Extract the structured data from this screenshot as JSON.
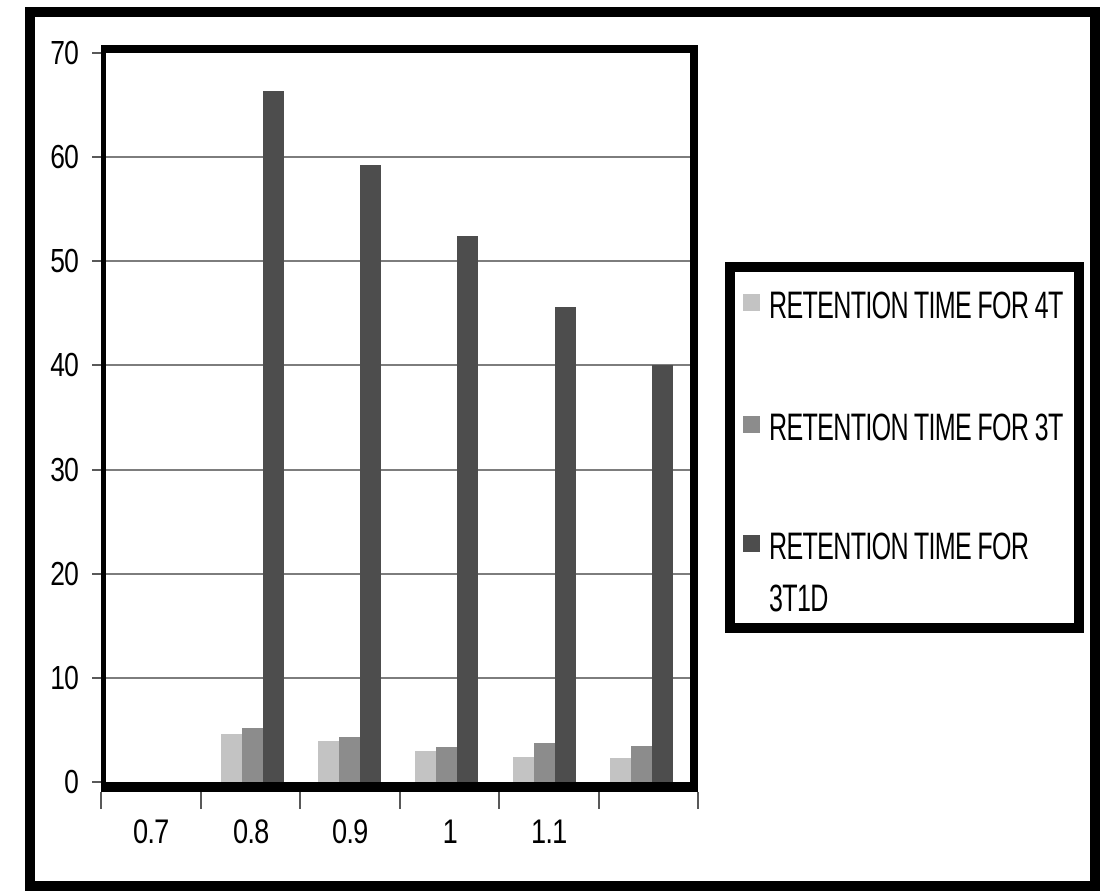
{
  "chart_data": {
    "type": "bar",
    "title": "",
    "xlabel": "",
    "ylabel": "",
    "categories": [
      "0.7",
      "0.8",
      "0.9",
      "1",
      "1.1",
      ""
    ],
    "series": [
      {
        "name": "RETENTION TIME FOR 4T",
        "color": "#c3c3c3",
        "values": [
          null,
          4.6,
          3.9,
          3.0,
          2.4,
          2.3
        ]
      },
      {
        "name": "RETENTION TIME FOR 3T",
        "color": "#8c8c8c",
        "values": [
          null,
          5.2,
          4.3,
          3.4,
          3.7,
          3.5
        ]
      },
      {
        "name": "RETENTION TIME FOR 3T1D",
        "color": "#4d4d4d",
        "values": [
          null,
          66.4,
          59.2,
          52.4,
          45.6,
          40.0
        ]
      }
    ],
    "ylim": [
      0,
      70
    ],
    "yticks": [
      0,
      10,
      20,
      30,
      40,
      50,
      60,
      70
    ],
    "grid": true,
    "legend_position": "right"
  },
  "colors": {
    "background": "#ffffff",
    "figure_border": "#000000",
    "axis": "#000000",
    "gridline": "#7d7d7d",
    "tick": "#595959",
    "text": "#000000",
    "legend_border": "#000000"
  }
}
